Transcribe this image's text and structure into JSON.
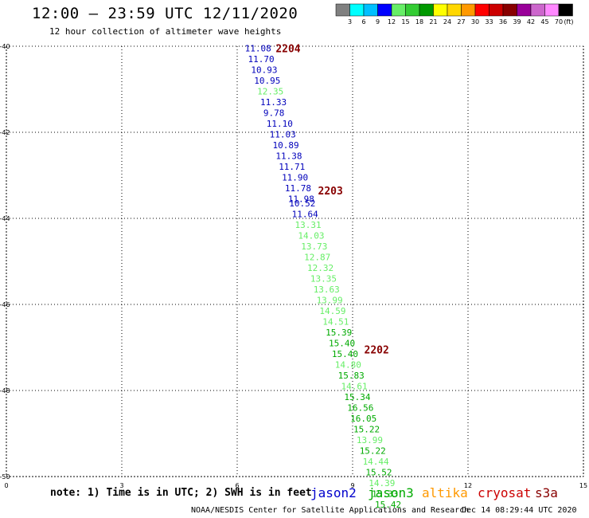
{
  "header": {
    "title": "12:00 — 23:59 UTC 12/11/2020",
    "subtitle": "12 hour collection of altimeter wave heights"
  },
  "scale_bar": {
    "unit": "(ft)",
    "colors": [
      "#808080",
      "#00ffff",
      "#00bfff",
      "#0000ff",
      "#66ee66",
      "#33cc33",
      "#009900",
      "#ffff00",
      "#ffd700",
      "#ff9900",
      "#ff0000",
      "#cc0000",
      "#880000",
      "#990099",
      "#cc66cc",
      "#ff88ff",
      "#000000"
    ],
    "labels": [
      "3",
      "6",
      "9",
      "12",
      "15",
      "18",
      "21",
      "24",
      "27",
      "30",
      "33",
      "36",
      "39",
      "42",
      "45",
      "70"
    ]
  },
  "legend": {
    "note": "note: 1) Time is in UTC; 2) SWH is in feet",
    "satellites": [
      {
        "name": "jason2",
        "color": "#0000cc"
      },
      {
        "name": "jason3",
        "color": "#00aa00"
      },
      {
        "name": "altika",
        "color": "#ff9900"
      },
      {
        "name": "cryosat",
        "color": "#cc0000"
      },
      {
        "name": "s3a",
        "color": "#880000"
      }
    ]
  },
  "footer": {
    "credit": "NOAA/NESDIS Center for Satellite Applications and Research",
    "timestamp": "Dec 14 08:29:44 UTC 2020"
  },
  "chart_data": {
    "type": "scatter",
    "title": "12:00 — 23:59 UTC 12/11/2020",
    "subtitle": "12 hour collection of altimeter wave heights",
    "xlim": [
      0,
      15
    ],
    "ylim": [
      -40,
      -50
    ],
    "x_ticks": [
      0,
      3,
      6,
      9,
      12,
      15
    ],
    "y_ticks": [
      -40,
      -42,
      -44,
      -46,
      -48,
      -50
    ],
    "grid": true,
    "colors": {
      "blue": "#0000bb",
      "lightgreen": "#66ee66",
      "green": "#00aa00",
      "time": "#880000"
    },
    "time_labels": [
      {
        "label": "2204",
        "x": 7.0,
        "y": -40.05
      },
      {
        "label": "2203",
        "x": 8.1,
        "y": -43.35
      },
      {
        "label": "2202",
        "x": 9.3,
        "y": -47.05
      }
    ],
    "points": [
      {
        "x": 6.2,
        "y": -40.05,
        "v": "11.08",
        "c": "blue"
      },
      {
        "x": 6.28,
        "y": -40.3,
        "v": "11.70",
        "c": "blue"
      },
      {
        "x": 6.36,
        "y": -40.55,
        "v": "10.93",
        "c": "blue"
      },
      {
        "x": 6.44,
        "y": -40.8,
        "v": "10.95",
        "c": "blue"
      },
      {
        "x": 6.52,
        "y": -41.05,
        "v": "12.35",
        "c": "lightgreen"
      },
      {
        "x": 6.6,
        "y": -41.3,
        "v": "11.33",
        "c": "blue"
      },
      {
        "x": 6.68,
        "y": -41.55,
        "v": "9.78",
        "c": "blue"
      },
      {
        "x": 6.76,
        "y": -41.8,
        "v": "11.10",
        "c": "blue"
      },
      {
        "x": 6.84,
        "y": -42.05,
        "v": "11.03",
        "c": "blue"
      },
      {
        "x": 6.92,
        "y": -42.3,
        "v": "10.89",
        "c": "blue"
      },
      {
        "x": 7.0,
        "y": -42.55,
        "v": "11.38",
        "c": "blue"
      },
      {
        "x": 7.08,
        "y": -42.8,
        "v": "11.71",
        "c": "blue"
      },
      {
        "x": 7.16,
        "y": -43.05,
        "v": "11.90",
        "c": "blue"
      },
      {
        "x": 7.24,
        "y": -43.3,
        "v": "11.78",
        "c": "blue"
      },
      {
        "x": 7.32,
        "y": -43.55,
        "v": "11.98",
        "c": "blue"
      },
      {
        "x": 7.35,
        "y": -43.65,
        "v": "10.52",
        "c": "blue"
      },
      {
        "x": 7.42,
        "y": -43.9,
        "v": "11.64",
        "c": "blue"
      },
      {
        "x": 7.5,
        "y": -44.15,
        "v": "13.31",
        "c": "lightgreen"
      },
      {
        "x": 7.58,
        "y": -44.4,
        "v": "14.03",
        "c": "lightgreen"
      },
      {
        "x": 7.66,
        "y": -44.65,
        "v": "13.73",
        "c": "lightgreen"
      },
      {
        "x": 7.74,
        "y": -44.9,
        "v": "12.87",
        "c": "lightgreen"
      },
      {
        "x": 7.82,
        "y": -45.15,
        "v": "12.32",
        "c": "lightgreen"
      },
      {
        "x": 7.9,
        "y": -45.4,
        "v": "13.35",
        "c": "lightgreen"
      },
      {
        "x": 7.98,
        "y": -45.65,
        "v": "13.63",
        "c": "lightgreen"
      },
      {
        "x": 8.06,
        "y": -45.9,
        "v": "13.99",
        "c": "lightgreen"
      },
      {
        "x": 8.14,
        "y": -46.15,
        "v": "14.59",
        "c": "lightgreen"
      },
      {
        "x": 8.22,
        "y": -46.4,
        "v": "14.51",
        "c": "lightgreen"
      },
      {
        "x": 8.3,
        "y": -46.65,
        "v": "15.39",
        "c": "green"
      },
      {
        "x": 8.38,
        "y": -46.9,
        "v": "15.40",
        "c": "green"
      },
      {
        "x": 8.46,
        "y": -47.15,
        "v": "15.40",
        "c": "green"
      },
      {
        "x": 8.54,
        "y": -47.4,
        "v": "14.80",
        "c": "lightgreen"
      },
      {
        "x": 8.62,
        "y": -47.65,
        "v": "15.83",
        "c": "green"
      },
      {
        "x": 8.7,
        "y": -47.9,
        "v": "14.61",
        "c": "lightgreen"
      },
      {
        "x": 8.78,
        "y": -48.15,
        "v": "15.34",
        "c": "green"
      },
      {
        "x": 8.86,
        "y": -48.4,
        "v": "16.56",
        "c": "green"
      },
      {
        "x": 8.94,
        "y": -48.65,
        "v": "16.05",
        "c": "green"
      },
      {
        "x": 9.02,
        "y": -48.9,
        "v": "15.22",
        "c": "green"
      },
      {
        "x": 9.1,
        "y": -49.15,
        "v": "13.99",
        "c": "lightgreen"
      },
      {
        "x": 9.18,
        "y": -49.4,
        "v": "15.22",
        "c": "green"
      },
      {
        "x": 9.26,
        "y": -49.65,
        "v": "14.44",
        "c": "lightgreen"
      },
      {
        "x": 9.34,
        "y": -49.9,
        "v": "15.52",
        "c": "green"
      },
      {
        "x": 9.42,
        "y": -50.15,
        "v": "14.39",
        "c": "lightgreen"
      },
      {
        "x": 9.5,
        "y": -50.4,
        "v": "15.33",
        "c": "green"
      },
      {
        "x": 9.58,
        "y": -50.65,
        "v": "15.42",
        "c": "green"
      }
    ]
  }
}
